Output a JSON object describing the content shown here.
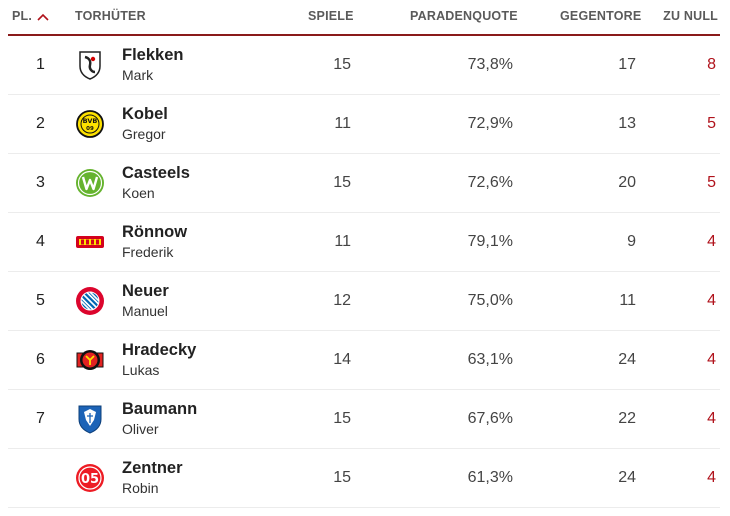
{
  "header": {
    "pl": "PL.",
    "torhueter": "TORHÜTER",
    "spiele": "SPIELE",
    "paradenquote": "PARADENQUOTE",
    "gegentore": "GEGENTORE",
    "zu_null": "ZU NULL",
    "sort_icon": "chevron-up-icon",
    "accent_color": "#8a1a1a"
  },
  "rows": [
    {
      "rank": "1",
      "surname": "Flekken",
      "firstname": "Mark",
      "club_icon": "freiburg-crest-icon",
      "spiele": "15",
      "paradenquote": "73,8%",
      "gegentore": "17",
      "zu_null": "8"
    },
    {
      "rank": "2",
      "surname": "Kobel",
      "firstname": "Gregor",
      "club_icon": "dortmund-crest-icon",
      "spiele": "11",
      "paradenquote": "72,9%",
      "gegentore": "13",
      "zu_null": "5"
    },
    {
      "rank": "3",
      "surname": "Casteels",
      "firstname": "Koen",
      "club_icon": "wolfsburg-crest-icon",
      "spiele": "15",
      "paradenquote": "72,6%",
      "gegentore": "20",
      "zu_null": "5"
    },
    {
      "rank": "4",
      "surname": "Rönnow",
      "firstname": "Frederik",
      "club_icon": "union-berlin-crest-icon",
      "spiele": "11",
      "paradenquote": "79,1%",
      "gegentore": "9",
      "zu_null": "4"
    },
    {
      "rank": "5",
      "surname": "Neuer",
      "firstname": "Manuel",
      "club_icon": "bayern-crest-icon",
      "spiele": "12",
      "paradenquote": "75,0%",
      "gegentore": "11",
      "zu_null": "4"
    },
    {
      "rank": "6",
      "surname": "Hradecky",
      "firstname": "Lukas",
      "club_icon": "leverkusen-crest-icon",
      "spiele": "14",
      "paradenquote": "63,1%",
      "gegentore": "24",
      "zu_null": "4"
    },
    {
      "rank": "7",
      "surname": "Baumann",
      "firstname": "Oliver",
      "club_icon": "hoffenheim-crest-icon",
      "spiele": "15",
      "paradenquote": "67,6%",
      "gegentore": "22",
      "zu_null": "4"
    },
    {
      "rank": "",
      "surname": "Zentner",
      "firstname": "Robin",
      "club_icon": "mainz-crest-icon",
      "spiele": "15",
      "paradenquote": "61,3%",
      "gegentore": "24",
      "zu_null": "4"
    }
  ]
}
